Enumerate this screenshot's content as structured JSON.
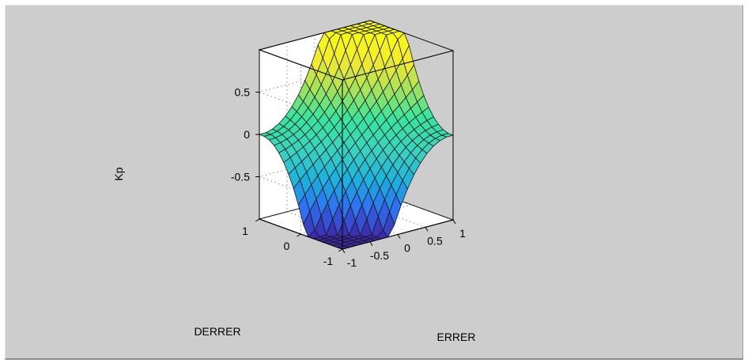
{
  "chart_data": {
    "type": "surface",
    "title": "",
    "xlabel": "ERRER",
    "ylabel": "DERRER",
    "zlabel": "Kp",
    "xlim": [
      -1,
      1
    ],
    "ylim": [
      -1,
      1
    ],
    "zlim": [
      -1,
      1
    ],
    "x_ticks": [
      -1,
      -0.5,
      0,
      0.5,
      1
    ],
    "y_ticks": [
      -1,
      0,
      1
    ],
    "z_ticks": [
      -0.5,
      0,
      0.5
    ],
    "x_tick_labels": [
      "-1",
      "-0.5",
      "0",
      "0.5",
      "1"
    ],
    "y_tick_labels": [
      "-1",
      "0",
      "1"
    ],
    "z_tick_labels": [
      "-0.5",
      "0",
      "0.5"
    ],
    "grid": true,
    "colormap": "parula",
    "colormap_stops": [
      "#3e26a8",
      "#2e6ff3",
      "#1ab1df",
      "#39d2c0",
      "#37e59e",
      "#a5e25a",
      "#f3ea2e",
      "#f9fb0e"
    ],
    "surface_grid_size": 17,
    "surface_description_values": {
      "corner_x-1_y-1": -1.0,
      "corner_x1_y1": 1.0,
      "corner_x-1_y1": 0.0,
      "corner_x1_y-1": 0.0,
      "center": 0.0
    }
  }
}
